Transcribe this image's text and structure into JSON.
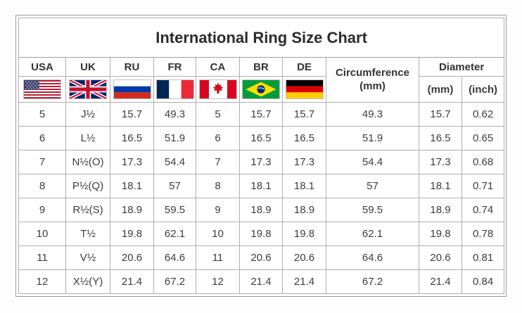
{
  "title": "International Ring Size Chart",
  "colors": {
    "border_outer": "#9a9a9a",
    "border_inner": "#aeaeae",
    "text": "#3a3a3a",
    "background": "#ffffff"
  },
  "table": {
    "columns": [
      {
        "code": "USA",
        "flag": "usa-flag"
      },
      {
        "code": "UK",
        "flag": "uk-flag"
      },
      {
        "code": "RU",
        "flag": "russia-flag"
      },
      {
        "code": "FR",
        "flag": "france-flag"
      },
      {
        "code": "CA",
        "flag": "canada-flag"
      },
      {
        "code": "BR",
        "flag": "brazil-flag"
      },
      {
        "code": "DE",
        "flag": "germany-flag"
      }
    ],
    "circumference": {
      "label": "Circumference",
      "unit": "(mm)"
    },
    "diameter": {
      "label": "Diameter",
      "units": [
        "(mm)",
        "(inch)"
      ]
    },
    "rows": [
      [
        "5",
        "J½",
        "15.7",
        "49.3",
        "5",
        "15.7",
        "15.7",
        "49.3",
        "15.7",
        "0.62"
      ],
      [
        "6",
        "L½",
        "16.5",
        "51.9",
        "6",
        "16.5",
        "16.5",
        "51.9",
        "16.5",
        "0.65"
      ],
      [
        "7",
        "N½(O)",
        "17.3",
        "54.4",
        "7",
        "17.3",
        "17.3",
        "54.4",
        "17.3",
        "0.68"
      ],
      [
        "8",
        "P½(Q)",
        "18.1",
        "57",
        "8",
        "18.1",
        "18.1",
        "57",
        "18.1",
        "0.71"
      ],
      [
        "9",
        "R½(S)",
        "18.9",
        "59.5",
        "9",
        "18.9",
        "18.9",
        "59.5",
        "18.9",
        "0.74"
      ],
      [
        "10",
        "T½",
        "19.8",
        "62.1",
        "10",
        "19.8",
        "19.8",
        "62.1",
        "19.8",
        "0.78"
      ],
      [
        "11",
        "V½",
        "20.6",
        "64.6",
        "11",
        "20.6",
        "20.6",
        "64.6",
        "20.6",
        "0.81"
      ],
      [
        "12",
        "X½(Y)",
        "21.4",
        "67.2",
        "12",
        "21.4",
        "21.4",
        "67.2",
        "21.4",
        "0.84"
      ]
    ]
  }
}
